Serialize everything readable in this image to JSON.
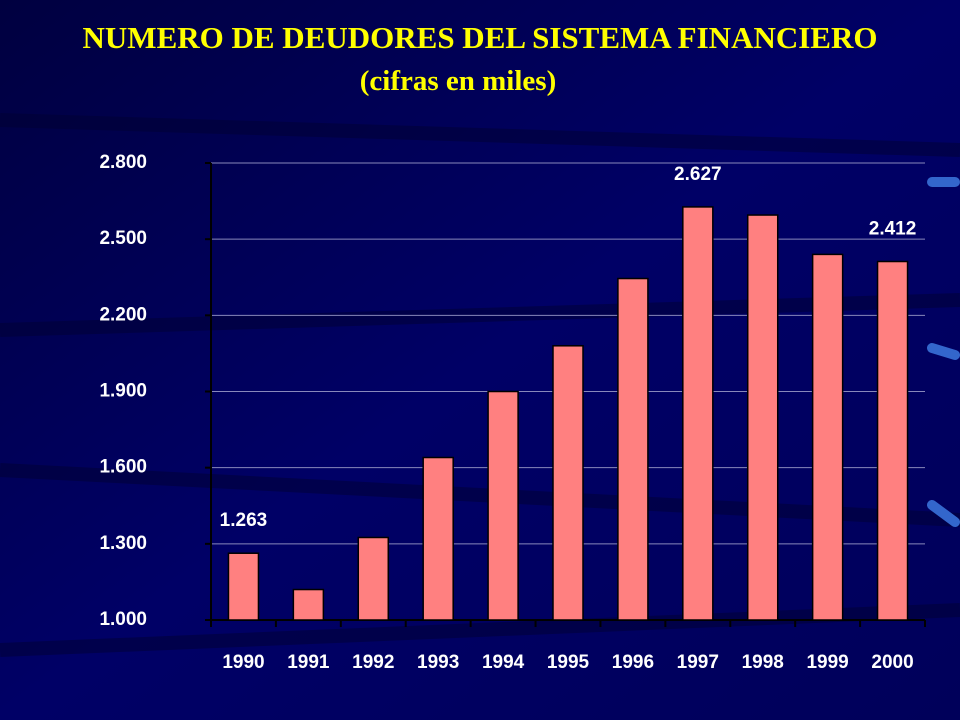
{
  "chart_data": {
    "type": "bar",
    "title": "NUMERO DE DEUDORES DEL SISTEMA FINANCIERO",
    "subtitle": "(cifras en miles)",
    "categories": [
      "1990",
      "1991",
      "1992",
      "1993",
      "1994",
      "1995",
      "1996",
      "1997",
      "1998",
      "1999",
      "2000"
    ],
    "values": [
      1263,
      1120,
      1325,
      1640,
      1900,
      2080,
      2345,
      2627,
      2595,
      2440,
      2412
    ],
    "value_labels": [
      "1.263",
      null,
      null,
      null,
      null,
      null,
      null,
      "2.627",
      null,
      null,
      "2.412"
    ],
    "color": "#ff8080",
    "ylim": [
      1000,
      2800
    ],
    "yticks": [
      {
        "value": 1000,
        "label": "1.000"
      },
      {
        "value": 1300,
        "label": "1.300"
      },
      {
        "value": 1600,
        "label": "1.600"
      },
      {
        "value": 1900,
        "label": "1.900"
      },
      {
        "value": 2200,
        "label": "2.200"
      },
      {
        "value": 2500,
        "label": "2.500"
      },
      {
        "value": 2800,
        "label": "2.800"
      }
    ],
    "grid": true
  }
}
